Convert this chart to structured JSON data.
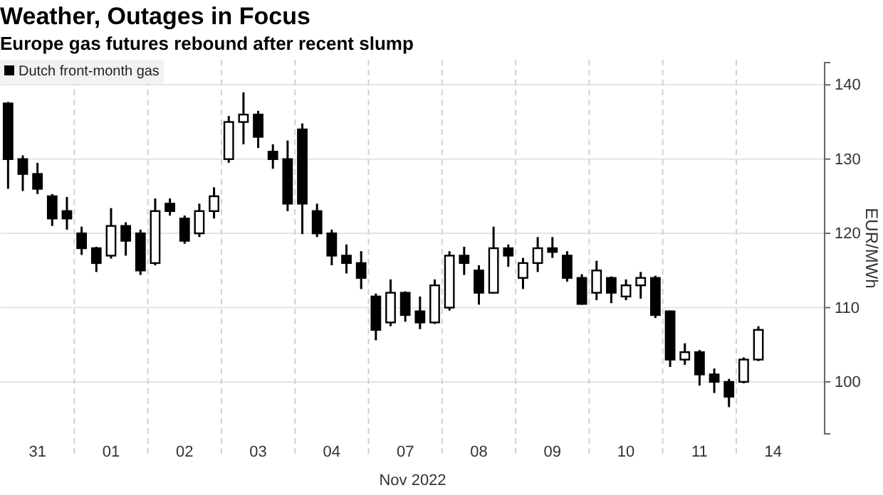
{
  "chart_data": {
    "type": "candlestick",
    "title": "Weather, Outages in Focus",
    "subtitle": "Europe gas futures rebound after recent slump",
    "xlabel": "Nov 2022",
    "ylabel": "EUR/MWh",
    "legend": "top left",
    "grid": true,
    "ylim": [
      93,
      143
    ],
    "yticks": [
      100,
      110,
      120,
      130,
      140
    ],
    "categories": [
      null,
      null,
      "31",
      null,
      null,
      null,
      null,
      "01",
      null,
      null,
      null,
      null,
      "02",
      null,
      null,
      null,
      null,
      "03",
      null,
      null,
      null,
      null,
      "04",
      null,
      null,
      null,
      null,
      "07",
      null,
      null,
      null,
      null,
      "08",
      null,
      null,
      null,
      null,
      "09",
      null,
      null,
      null,
      null,
      "10",
      null,
      null,
      null,
      null,
      "11",
      null,
      null,
      null,
      null,
      "14",
      null,
      null,
      null
    ],
    "series": [
      {
        "name": "Dutch front-month gas",
        "color": "#000000",
        "ohlc": [
          [
            137.5,
            137.7,
            126,
            130
          ],
          [
            130,
            130.5,
            125.7,
            128
          ],
          [
            128,
            129.5,
            125.3,
            126
          ],
          [
            125,
            125.3,
            121,
            122
          ],
          [
            123,
            124.9,
            120.5,
            122
          ],
          [
            120,
            120.9,
            117.1,
            118
          ],
          [
            118,
            118.2,
            114.8,
            116
          ],
          [
            117,
            123.4,
            116.6,
            121
          ],
          [
            121,
            121.5,
            117,
            119
          ],
          [
            120,
            120.5,
            114.4,
            115
          ],
          [
            116,
            124.7,
            115.7,
            123
          ],
          [
            124,
            124.7,
            122.4,
            123
          ],
          [
            122,
            122.4,
            118.6,
            119
          ],
          [
            120,
            124,
            119.5,
            123
          ],
          [
            123,
            126.2,
            122,
            125
          ],
          [
            130,
            135.8,
            129.5,
            135
          ],
          [
            135,
            139,
            132,
            136
          ],
          [
            136,
            136.5,
            131.5,
            133
          ],
          [
            131,
            132,
            128.7,
            130
          ],
          [
            130,
            132.5,
            123,
            124
          ],
          [
            134,
            134.8,
            119.9,
            124
          ],
          [
            123,
            124,
            119.5,
            120
          ],
          [
            120,
            120.5,
            115.7,
            117
          ],
          [
            117,
            118.5,
            114.6,
            116
          ],
          [
            116,
            117.6,
            112.5,
            114
          ],
          [
            111.5,
            111.9,
            105.6,
            107
          ],
          [
            108,
            113.8,
            107.5,
            112
          ],
          [
            112,
            112.2,
            108.1,
            109
          ],
          [
            109.5,
            111.5,
            107.1,
            108
          ],
          [
            108,
            113.8,
            107.8,
            113
          ],
          [
            110,
            117.6,
            109.6,
            117
          ],
          [
            117,
            118.2,
            114.4,
            116
          ],
          [
            115,
            115.7,
            110.4,
            112
          ],
          [
            112,
            120.9,
            111.9,
            118
          ],
          [
            118,
            118.5,
            115.5,
            117
          ],
          [
            114,
            116.7,
            112.5,
            116
          ],
          [
            116,
            119.5,
            114.8,
            118
          ],
          [
            118,
            119.5,
            116.7,
            117.5
          ],
          [
            117,
            117.6,
            113.5,
            114
          ],
          [
            114,
            114.5,
            110.4,
            110.5
          ],
          [
            112,
            116.3,
            111,
            115
          ],
          [
            114,
            114.2,
            110.6,
            112
          ],
          [
            111.5,
            113.8,
            111,
            113
          ],
          [
            113,
            114.8,
            111.2,
            114
          ],
          [
            114,
            114.3,
            108.6,
            109
          ],
          [
            109.5,
            109.6,
            102,
            103
          ],
          [
            103,
            105.2,
            102.3,
            104
          ],
          [
            104,
            104.3,
            99.5,
            101
          ],
          [
            101,
            101.8,
            98.5,
            100
          ],
          [
            100,
            100.4,
            96.6,
            98
          ],
          [
            100,
            103.3,
            99.8,
            103
          ],
          [
            103,
            107.5,
            102.8,
            107
          ],
          null,
          null,
          null,
          null
        ]
      }
    ]
  }
}
